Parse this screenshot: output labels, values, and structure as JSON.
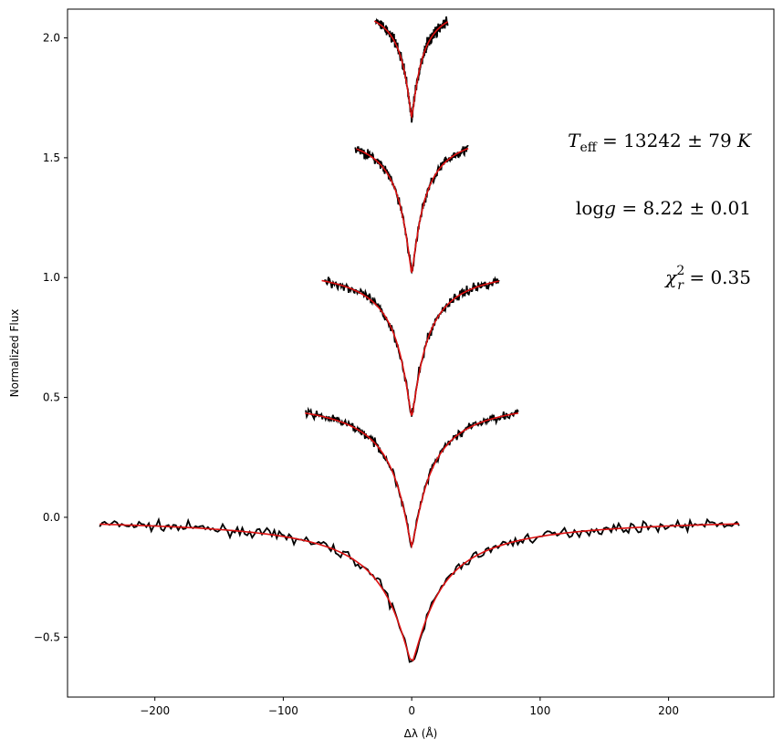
{
  "chart_data": {
    "type": "line",
    "title": "",
    "xlabel": "Δλ (Å)",
    "ylabel": "Normalized Flux",
    "xlim": [
      -268,
      282
    ],
    "ylim": [
      -0.75,
      2.12
    ],
    "xticks": [
      -200,
      -100,
      0,
      100,
      200
    ],
    "xtick_labels": [
      "−200",
      "−100",
      "0",
      "100",
      "200"
    ],
    "yticks": [
      -0.5,
      0.0,
      0.5,
      1.0,
      1.5,
      2.0
    ],
    "ytick_labels": [
      "−0.5",
      "0.0",
      "0.5",
      "1.0",
      "1.5",
      "2.0"
    ],
    "grid": false,
    "series_colors": {
      "observed": "#000000",
      "model": "#dd1111"
    },
    "profiles": [
      {
        "xmin": -243,
        "xmax": 255,
        "continuum": 0.0,
        "minimum": -0.61,
        "width": 22,
        "observed_xmin": -243,
        "noise": 0.012
      },
      {
        "xmin": -83,
        "xmax": 83,
        "continuum": 0.5,
        "minimum": -0.12,
        "width": 15,
        "observed_xmin": -83,
        "noise": 0.01
      },
      {
        "xmin": -70,
        "xmax": 68,
        "continuum": 1.05,
        "minimum": 0.42,
        "width": 12,
        "observed_xmin": -68,
        "noise": 0.012
      },
      {
        "xmin": -43,
        "xmax": 44,
        "continuum": 1.62,
        "minimum": 1.02,
        "width": 10,
        "observed_xmin": -44,
        "noise": 0.012
      },
      {
        "xmin": -29,
        "xmax": 28,
        "continuum": 2.15,
        "minimum": 1.67,
        "width": 8,
        "observed_xmin": -28,
        "noise": 0.015
      }
    ],
    "annotations": {
      "teff": {
        "sym": "T",
        "sub": "eff",
        "text": " = 13242 ± 79 ",
        "unit": "K"
      },
      "logg": {
        "pre": "log",
        "sym": "g",
        "text": " = 8.22 ± 0.01"
      },
      "chi2": {
        "sym": "χ",
        "sub": "r",
        "sup": "2",
        "text": " = 0.35"
      }
    }
  }
}
